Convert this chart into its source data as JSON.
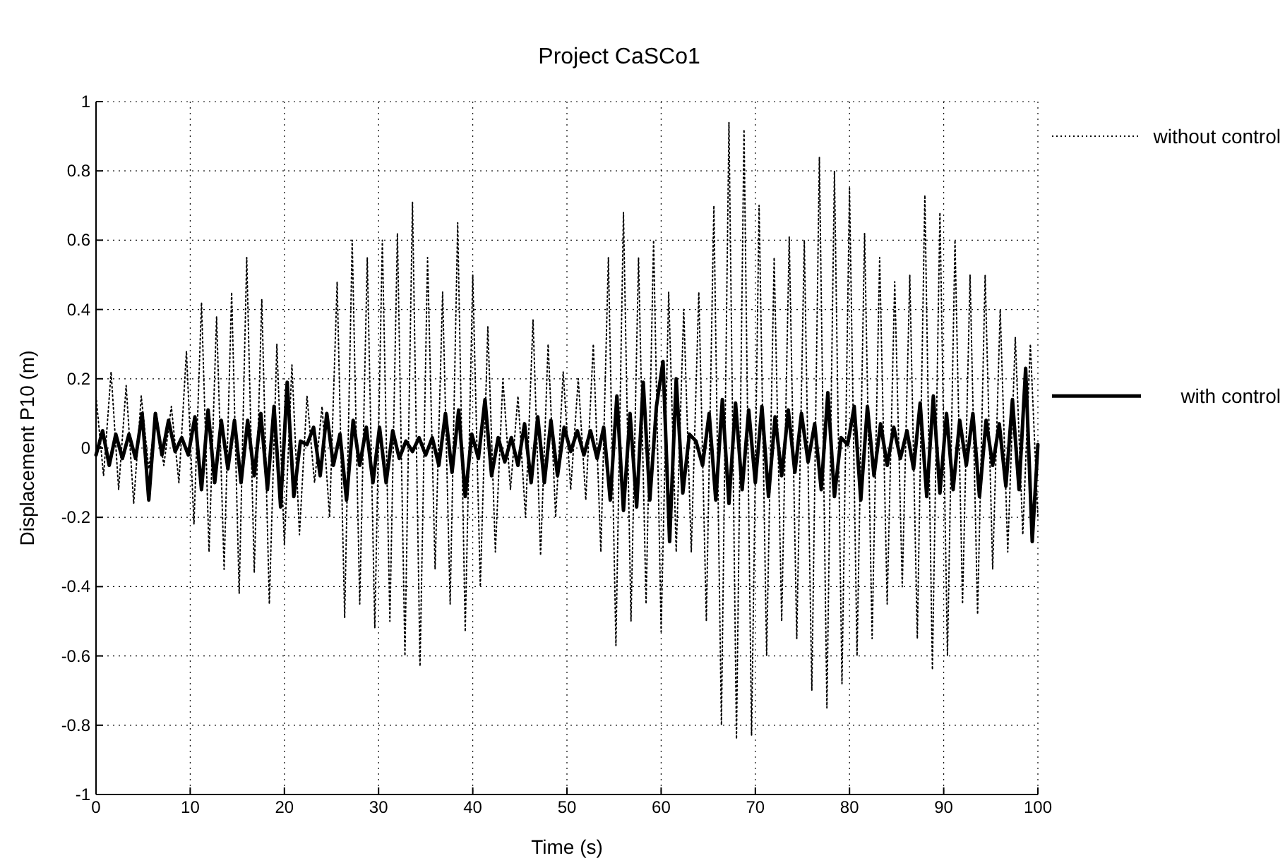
{
  "chart_data": {
    "type": "line",
    "title": "Project CaSCo1",
    "xlabel": "Time (s)",
    "ylabel": "Displacement P10 (m)",
    "xlim": [
      0,
      100
    ],
    "xticks": [
      0,
      10,
      20,
      30,
      40,
      50,
      60,
      70,
      80,
      90,
      100
    ],
    "ylim": [
      -1,
      1
    ],
    "yticks": [
      -1,
      -0.8,
      -0.6,
      -0.4,
      -0.2,
      0,
      0.2,
      0.4,
      0.6,
      0.8,
      1
    ],
    "grid": true,
    "legend": "right",
    "series": [
      {
        "name": "without control",
        "color": "#000000",
        "line_style": "dotted",
        "x": [
          0,
          0.8,
          1.6,
          2.4,
          3.2,
          4,
          4.8,
          5.6,
          6.4,
          7.2,
          8,
          8.8,
          9.6,
          10.4,
          11.2,
          12,
          12.8,
          13.6,
          14.4,
          15.2,
          16,
          16.8,
          17.6,
          18.4,
          19.2,
          20,
          20.8,
          21.6,
          22.4,
          23.2,
          24,
          24.8,
          25.6,
          26.4,
          27.2,
          28,
          28.8,
          29.6,
          30.4,
          31.2,
          32,
          32.8,
          33.6,
          34.4,
          35.2,
          36,
          36.8,
          37.6,
          38.4,
          39.2,
          40,
          40.8,
          41.6,
          42.4,
          43.2,
          44,
          44.8,
          45.6,
          46.4,
          47.2,
          48,
          48.8,
          49.6,
          50.4,
          51.2,
          52,
          52.8,
          53.6,
          54.4,
          55.2,
          56,
          56.8,
          57.6,
          58.4,
          59.2,
          60,
          60.8,
          61.6,
          62.4,
          63.2,
          64,
          64.8,
          65.6,
          66.4,
          67.2,
          68,
          68.8,
          69.6,
          70.4,
          71.2,
          72,
          72.8,
          73.6,
          74.4,
          75.2,
          76,
          76.8,
          77.6,
          78.4,
          79.2,
          80,
          80.8,
          81.6,
          82.4,
          83.2,
          84,
          84.8,
          85.6,
          86.4,
          87.2,
          88,
          88.8,
          89.6,
          90.4,
          91.2,
          92,
          92.8,
          93.6,
          94.4,
          95.2,
          96,
          96.8,
          97.6,
          98.4,
          99.2,
          100
        ],
        "values": [
          0.15,
          -0.08,
          0.22,
          -0.12,
          0.18,
          -0.16,
          0.15,
          -0.06,
          0.1,
          -0.05,
          0.12,
          -0.1,
          0.28,
          -0.22,
          0.42,
          -0.3,
          0.38,
          -0.35,
          0.45,
          -0.42,
          0.55,
          -0.36,
          0.43,
          -0.45,
          0.3,
          -0.28,
          0.24,
          -0.25,
          0.15,
          -0.1,
          0.12,
          -0.2,
          0.48,
          -0.49,
          0.6,
          -0.45,
          0.55,
          -0.52,
          0.6,
          -0.5,
          0.62,
          -0.6,
          0.71,
          -0.63,
          0.55,
          -0.35,
          0.45,
          -0.45,
          0.65,
          -0.53,
          0.5,
          -0.4,
          0.35,
          -0.3,
          0.2,
          -0.12,
          0.15,
          -0.2,
          0.37,
          -0.31,
          0.3,
          -0.2,
          0.22,
          -0.12,
          0.2,
          -0.15,
          0.3,
          -0.3,
          0.55,
          -0.57,
          0.68,
          -0.5,
          0.55,
          -0.45,
          0.6,
          -0.53,
          0.45,
          -0.3,
          0.4,
          -0.3,
          0.45,
          -0.5,
          0.7,
          -0.8,
          0.94,
          -0.84,
          0.92,
          -0.83,
          0.7,
          -0.6,
          0.55,
          -0.5,
          0.61,
          -0.55,
          0.6,
          -0.7,
          0.84,
          -0.75,
          0.8,
          -0.68,
          0.75,
          -0.6,
          0.62,
          -0.55,
          0.55,
          -0.45,
          0.48,
          -0.4,
          0.5,
          -0.55,
          0.73,
          -0.64,
          0.68,
          -0.6,
          0.6,
          -0.45,
          0.5,
          -0.48,
          0.5,
          -0.35,
          0.4,
          -0.3,
          0.32,
          -0.25,
          0.3,
          -0.2
        ]
      },
      {
        "name": "with control",
        "color": "#000000",
        "line_style": "solid",
        "x": [
          0,
          0.7,
          1.4,
          2.1,
          2.8,
          3.5,
          4.2,
          4.9,
          5.6,
          6.3,
          7,
          7.7,
          8.4,
          9.1,
          9.8,
          10.5,
          11.2,
          11.9,
          12.6,
          13.3,
          14,
          14.7,
          15.4,
          16.1,
          16.8,
          17.5,
          18.2,
          18.9,
          19.6,
          20.3,
          21,
          21.7,
          22.4,
          23.1,
          23.8,
          24.5,
          25.2,
          25.9,
          26.6,
          27.3,
          28,
          28.7,
          29.4,
          30.1,
          30.8,
          31.5,
          32.2,
          32.9,
          33.6,
          34.3,
          35,
          35.7,
          36.4,
          37.1,
          37.8,
          38.5,
          39.2,
          39.9,
          40.6,
          41.3,
          42,
          42.7,
          43.4,
          44.1,
          44.8,
          45.5,
          46.2,
          46.9,
          47.6,
          48.3,
          49,
          49.7,
          50.4,
          51.1,
          51.8,
          52.5,
          53.2,
          53.9,
          54.6,
          55.3,
          56,
          56.7,
          57.4,
          58.1,
          58.8,
          59.5,
          60.2,
          60.9,
          61.6,
          62.3,
          63,
          63.7,
          64.4,
          65.1,
          65.8,
          66.5,
          67.2,
          67.9,
          68.6,
          69.3,
          70,
          70.7,
          71.4,
          72.1,
          72.8,
          73.5,
          74.2,
          74.9,
          75.6,
          76.3,
          77,
          77.7,
          78.4,
          79.1,
          79.8,
          80.5,
          81.2,
          81.9,
          82.6,
          83.3,
          84,
          84.7,
          85.4,
          86.1,
          86.8,
          87.5,
          88.2,
          88.9,
          89.6,
          90.3,
          91,
          91.7,
          92.4,
          93.1,
          93.8,
          94.5,
          95.2,
          95.9,
          96.6,
          97.3,
          98,
          98.7,
          99.4,
          100
        ],
        "values": [
          -0.02,
          0.05,
          -0.05,
          0.04,
          -0.03,
          0.04,
          -0.03,
          0.1,
          -0.15,
          0.1,
          -0.02,
          0.08,
          -0.01,
          0.03,
          -0.02,
          0.09,
          -0.12,
          0.11,
          -0.1,
          0.08,
          -0.06,
          0.08,
          -0.1,
          0.08,
          -0.08,
          0.1,
          -0.12,
          0.12,
          -0.17,
          0.19,
          -0.14,
          0.02,
          0.01,
          0.06,
          -0.08,
          0.1,
          -0.05,
          0.04,
          -0.15,
          0.08,
          -0.05,
          0.06,
          -0.1,
          0.06,
          -0.1,
          0.05,
          -0.03,
          0.02,
          -0.01,
          0.03,
          -0.02,
          0.03,
          -0.05,
          0.1,
          -0.07,
          0.11,
          -0.14,
          0.04,
          -0.03,
          0.14,
          -0.08,
          0.03,
          -0.04,
          0.03,
          -0.05,
          0.07,
          -0.1,
          0.09,
          -0.1,
          0.08,
          -0.08,
          0.06,
          -0.01,
          0.05,
          -0.02,
          0.05,
          -0.03,
          0.06,
          -0.15,
          0.15,
          -0.18,
          0.1,
          -0.17,
          0.19,
          -0.15,
          0.12,
          0.25,
          -0.27,
          0.2,
          -0.13,
          0.04,
          0.02,
          -0.05,
          0.1,
          -0.15,
          0.14,
          -0.16,
          0.13,
          -0.12,
          0.11,
          -0.1,
          0.12,
          -0.14,
          0.09,
          -0.08,
          0.11,
          -0.07,
          0.1,
          -0.04,
          0.07,
          -0.12,
          0.16,
          -0.14,
          0.03,
          0.01,
          0.12,
          -0.15,
          0.12,
          -0.08,
          0.07,
          -0.05,
          0.06,
          -0.03,
          0.05,
          -0.06,
          0.13,
          -0.14,
          0.15,
          -0.13,
          0.1,
          -0.12,
          0.08,
          -0.05,
          0.1,
          -0.14,
          0.08,
          -0.05,
          0.07,
          -0.11,
          0.14,
          -0.12,
          0.23,
          -0.27,
          0.01
        ]
      }
    ]
  }
}
